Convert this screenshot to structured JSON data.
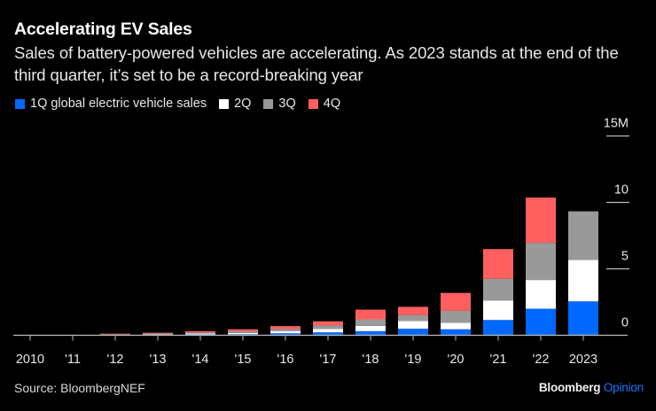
{
  "header": {
    "title": "Accelerating EV Sales",
    "subtitle": "Sales of battery-powered vehicles are accelerating. As 2023 stands at the end of the third quarter, it’s set to be a record-breaking year"
  },
  "legend": [
    {
      "label": "1Q global electric vehicle sales",
      "color": "#0068ff"
    },
    {
      "label": "2Q",
      "color": "#ffffff"
    },
    {
      "label": "3Q",
      "color": "#999999"
    },
    {
      "label": "4Q",
      "color": "#ff5f5f"
    }
  ],
  "footer": {
    "source": "Source: BloombergNEF",
    "brand_bold": "Bloomberg",
    "brand_light": "Opinion"
  },
  "chart_data": {
    "type": "bar",
    "stacked": true,
    "title": "Accelerating EV Sales",
    "xlabel": "",
    "ylabel": "",
    "ylim": [
      0,
      15
    ],
    "yticks": [
      0,
      5,
      10,
      15
    ],
    "ytick_labels": [
      "0",
      "5",
      "10",
      "15M"
    ],
    "y_axis_position": "right",
    "grid": false,
    "legend_position": "top-left",
    "categories": [
      "2010",
      "'11",
      "'12",
      "'13",
      "'14",
      "'15",
      "'16",
      "'17",
      "'18",
      "'19",
      "'20",
      "'21",
      "'22",
      "2023"
    ],
    "series": [
      {
        "name": "1Q global electric vehicle sales",
        "color": "#0068ff",
        "values": [
          0.002,
          0.005,
          0.02,
          0.04,
          0.06,
          0.08,
          0.15,
          0.22,
          0.31,
          0.49,
          0.45,
          1.15,
          2.0,
          2.55
        ]
      },
      {
        "name": "2Q",
        "color": "#ffffff",
        "values": [
          0.002,
          0.008,
          0.03,
          0.04,
          0.07,
          0.1,
          0.15,
          0.25,
          0.4,
          0.58,
          0.5,
          1.45,
          2.16,
          3.13
        ]
      },
      {
        "name": "3Q",
        "color": "#999999",
        "values": [
          0.003,
          0.008,
          0.03,
          0.05,
          0.08,
          0.12,
          0.17,
          0.27,
          0.49,
          0.45,
          0.89,
          1.65,
          2.8,
          3.65
        ]
      },
      {
        "name": "4Q",
        "color": "#ff5f5f",
        "values": [
          0.004,
          0.01,
          0.04,
          0.06,
          0.1,
          0.15,
          0.22,
          0.31,
          0.73,
          0.62,
          1.35,
          2.24,
          3.4,
          0
        ]
      }
    ]
  }
}
